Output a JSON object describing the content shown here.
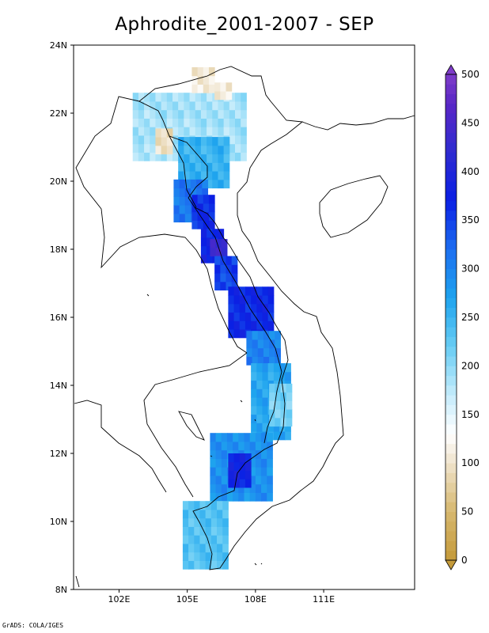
{
  "title": "Aphrodite_2001-2007 - SEP",
  "credit": "GrADS: COLA/IGES",
  "map": {
    "lat_range": [
      8,
      24
    ],
    "lon_range": [
      100,
      115
    ],
    "lat_ticks": [
      {
        "value": 8,
        "label": "8N"
      },
      {
        "value": 10,
        "label": "10N"
      },
      {
        "value": 12,
        "label": "12N"
      },
      {
        "value": 14,
        "label": "14N"
      },
      {
        "value": 16,
        "label": "16N"
      },
      {
        "value": 18,
        "label": "18N"
      },
      {
        "value": 20,
        "label": "20N"
      },
      {
        "value": 22,
        "label": "22N"
      },
      {
        "value": 24,
        "label": "24N"
      }
    ],
    "lon_ticks": [
      {
        "value": 102,
        "label": "102E"
      },
      {
        "value": 105,
        "label": "105E"
      },
      {
        "value": 108,
        "label": "108E"
      },
      {
        "value": 111,
        "label": "111E"
      }
    ]
  },
  "colorbar": {
    "min": 0,
    "max": 500,
    "step": 10,
    "labels": [
      "0",
      "50",
      "100",
      "150",
      "200",
      "250",
      "300",
      "350",
      "400",
      "450",
      "500"
    ],
    "stops": [
      {
        "v": 0,
        "color": "#c49a3a"
      },
      {
        "v": 50,
        "color": "#d7b86f"
      },
      {
        "v": 100,
        "color": "#efe3cc"
      },
      {
        "v": 130,
        "color": "#ffffff"
      },
      {
        "v": 170,
        "color": "#c6ecfb"
      },
      {
        "v": 220,
        "color": "#69cdf4"
      },
      {
        "v": 270,
        "color": "#1ea4ee"
      },
      {
        "v": 320,
        "color": "#1d6ff0"
      },
      {
        "v": 370,
        "color": "#0a1fe4"
      },
      {
        "v": 420,
        "color": "#2f2bd0"
      },
      {
        "v": 470,
        "color": "#5a27c6"
      },
      {
        "v": 500,
        "color": "#7e3cc8"
      }
    ]
  },
  "rain_regions": [
    {
      "lon": [
        102.6,
        107.4
      ],
      "lat": [
        20.6,
        22.6
      ],
      "value": 185
    },
    {
      "lon": [
        103.6,
        104.2
      ],
      "lat": [
        20.8,
        21.4
      ],
      "value": 95
    },
    {
      "lon": [
        105.2,
        106.0
      ],
      "lat": [
        22.6,
        23.3
      ],
      "value": 105
    },
    {
      "lon": [
        106.2,
        106.8
      ],
      "lat": [
        22.4,
        22.9
      ],
      "value": 110
    },
    {
      "lon": [
        104.6,
        106.8
      ],
      "lat": [
        19.8,
        21.2
      ],
      "value": 250
    },
    {
      "lon": [
        104.4,
        105.8
      ],
      "lat": [
        18.8,
        20.0
      ],
      "value": 310
    },
    {
      "lon": [
        105.2,
        106.0
      ],
      "lat": [
        18.6,
        19.4
      ],
      "value": 360
    },
    {
      "lon": [
        105.6,
        106.4
      ],
      "lat": [
        17.6,
        18.6
      ],
      "value": 370
    },
    {
      "lon": [
        106.0,
        106.6
      ],
      "lat": [
        17.8,
        18.2
      ],
      "value": 430
    },
    {
      "lon": [
        106.2,
        107.2
      ],
      "lat": [
        16.8,
        17.8
      ],
      "value": 345
    },
    {
      "lon": [
        106.8,
        108.6
      ],
      "lat": [
        15.4,
        16.8
      ],
      "value": 365
    },
    {
      "lon": [
        107.6,
        109.0
      ],
      "lat": [
        14.6,
        15.6
      ],
      "value": 300
    },
    {
      "lon": [
        107.8,
        109.4
      ],
      "lat": [
        12.4,
        14.6
      ],
      "value": 265
    },
    {
      "lon": [
        108.6,
        109.4
      ],
      "lat": [
        12.8,
        14.0
      ],
      "value": 210
    },
    {
      "lon": [
        106.0,
        108.6
      ],
      "lat": [
        10.6,
        12.4
      ],
      "value": 285
    },
    {
      "lon": [
        106.8,
        107.8
      ],
      "lat": [
        11.0,
        12.0
      ],
      "value": 375
    },
    {
      "lon": [
        104.8,
        106.6
      ],
      "lat": [
        8.6,
        10.6
      ],
      "value": 230
    }
  ]
}
